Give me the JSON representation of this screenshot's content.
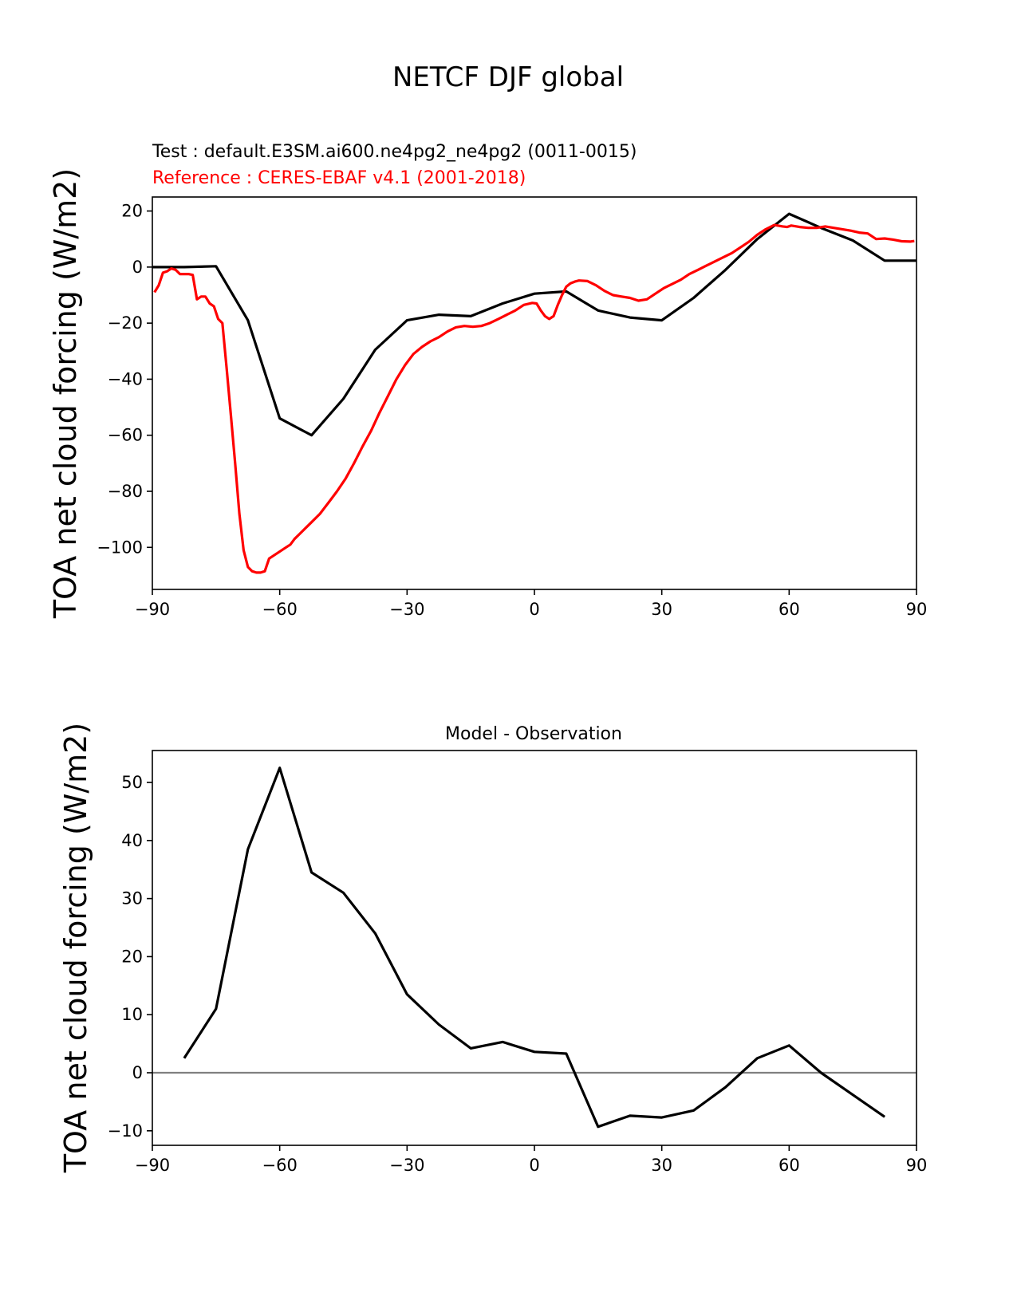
{
  "figure_title": "NETCF DJF global",
  "colors": {
    "test": "#000000",
    "reference": "#ff0000",
    "zero_line": "#808080"
  },
  "chart_data": [
    {
      "type": "line",
      "test_label": "Test : default.E3SM.ai600.ne4pg2_ne4pg2 (0011-0015)",
      "reference_label": "Reference : CERES-EBAF v4.1 (2001-2018)",
      "xlabel": "",
      "ylabel": "TOA net cloud forcing (W/m2)",
      "xlim": [
        -90,
        90
      ],
      "ylim": [
        -115,
        25
      ],
      "xticks": [
        -90,
        -60,
        -30,
        0,
        30,
        60,
        90
      ],
      "yticks": [
        -100,
        -80,
        -60,
        -40,
        -20,
        0,
        20
      ],
      "series": [
        {
          "name": "Test",
          "color": "#000000",
          "x": [
            -90,
            -82.5,
            -75,
            -67.5,
            -60,
            -52.5,
            -45,
            -37.5,
            -30,
            -22.5,
            -15,
            -7.5,
            0,
            7.5,
            15,
            22.5,
            30,
            37.5,
            45,
            52.5,
            60,
            67.5,
            75,
            82.5,
            90
          ],
          "y": [
            0,
            0,
            0.3,
            -19,
            -54,
            -60,
            -47,
            -29.5,
            -19,
            -17,
            -17.5,
            -13,
            -9.5,
            -8.7,
            -15.5,
            -18,
            -19,
            -11,
            -1,
            10,
            19,
            14,
            9.5,
            2.3,
            2.3
          ]
        },
        {
          "name": "Reference",
          "color": "#ff0000",
          "x": [
            -89.5,
            -88.5,
            -87.5,
            -86.5,
            -85.5,
            -84.5,
            -83.5,
            -82.5,
            -81.5,
            -80.5,
            -79.5,
            -78.5,
            -77.5,
            -76.5,
            -75.5,
            -74.5,
            -73.5,
            -72.5,
            -71.5,
            -70.5,
            -69.5,
            -68.5,
            -67.5,
            -66.5,
            -65.5,
            -64.5,
            -63.5,
            -62.5,
            -61.5,
            -60.5,
            -59.5,
            -58.5,
            -57.5,
            -56.5,
            -55.5,
            -54.5,
            -52.5,
            -50.5,
            -48.5,
            -46.5,
            -44.5,
            -42.5,
            -40.5,
            -38.5,
            -36.5,
            -34.5,
            -32.5,
            -30.5,
            -28.5,
            -26.5,
            -24.5,
            -22.5,
            -20.5,
            -18.5,
            -16.5,
            -14.5,
            -12.5,
            -10.5,
            -8.5,
            -6.5,
            -4.5,
            -2.5,
            -0.5,
            0.5,
            1.5,
            2.5,
            3.5,
            4.5,
            5.5,
            6.5,
            7.5,
            8.5,
            9.5,
            10.5,
            12.5,
            14.5,
            16.5,
            18.5,
            20.5,
            22.5,
            24.5,
            26.5,
            28.5,
            30.5,
            32.5,
            34.5,
            36.5,
            38.5,
            40.5,
            42.5,
            44.5,
            46.5,
            48.5,
            50.5,
            52.5,
            54.5,
            56.5,
            58.5,
            59.5,
            60.5,
            62.5,
            64.5,
            66.5,
            68.5,
            70.5,
            72.5,
            74.5,
            76.5,
            78.5,
            80.5,
            82.5,
            84.5,
            86.5,
            88.5,
            89.5
          ],
          "y": [
            -9,
            -6.5,
            -2,
            -1.5,
            -0.5,
            -1,
            -2.5,
            -2.5,
            -2.5,
            -2.8,
            -11.5,
            -10.5,
            -10.5,
            -13,
            -14,
            -18.5,
            -20,
            -36,
            -53,
            -70,
            -88,
            -101,
            -107,
            -108.5,
            -109,
            -109,
            -108.5,
            -104,
            -103,
            -102,
            -101,
            -100,
            -99,
            -97,
            -95.5,
            -94,
            -91,
            -88,
            -84,
            -80,
            -75.5,
            -70,
            -64,
            -58.5,
            -52,
            -46,
            -40,
            -35,
            -31,
            -28.5,
            -26.5,
            -25,
            -23,
            -21.5,
            -21,
            -21.3,
            -21,
            -20,
            -18.5,
            -17,
            -15.5,
            -13.5,
            -12.8,
            -13,
            -15.5,
            -17.5,
            -18.5,
            -17.5,
            -13.5,
            -10,
            -7,
            -5.8,
            -5.2,
            -4.8,
            -5,
            -6.5,
            -8.5,
            -10,
            -10.5,
            -11,
            -12,
            -11.5,
            -9.5,
            -7.5,
            -6,
            -4.5,
            -2.5,
            -1,
            0.5,
            2,
            3.5,
            5,
            7,
            9,
            11.5,
            13.5,
            15,
            14.5,
            14.3,
            14.8,
            14.3,
            14,
            14,
            14.5,
            14,
            13.5,
            13,
            12.3,
            12,
            10,
            10.2,
            9.8,
            9.2,
            9.1,
            9.3
          ]
        }
      ]
    },
    {
      "type": "line",
      "title": "Model - Observation",
      "xlabel": "",
      "ylabel": "TOA net cloud forcing (W/m2)",
      "xlim": [
        -90,
        90
      ],
      "ylim": [
        -12.5,
        55.5
      ],
      "xticks": [
        -90,
        -60,
        -30,
        0,
        30,
        60,
        90
      ],
      "yticks": [
        -10,
        0,
        10,
        20,
        30,
        40,
        50
      ],
      "zero_line": true,
      "series": [
        {
          "name": "Difference",
          "color": "#000000",
          "x": [
            -82.5,
            -75,
            -67.5,
            -60,
            -52.5,
            -45,
            -37.5,
            -30,
            -22.5,
            -15,
            -7.5,
            0,
            7.5,
            15,
            22.5,
            30,
            37.5,
            45,
            52.5,
            60,
            67.5,
            75,
            82.5
          ],
          "y": [
            2.5,
            11,
            38.5,
            52.5,
            34.5,
            31,
            24,
            13.5,
            8.3,
            4.2,
            5.3,
            3.6,
            3.3,
            -9.3,
            -7.4,
            -7.7,
            -6.5,
            -2.5,
            2.5,
            4.7,
            0,
            -3.8,
            -7.6
          ]
        }
      ]
    }
  ]
}
